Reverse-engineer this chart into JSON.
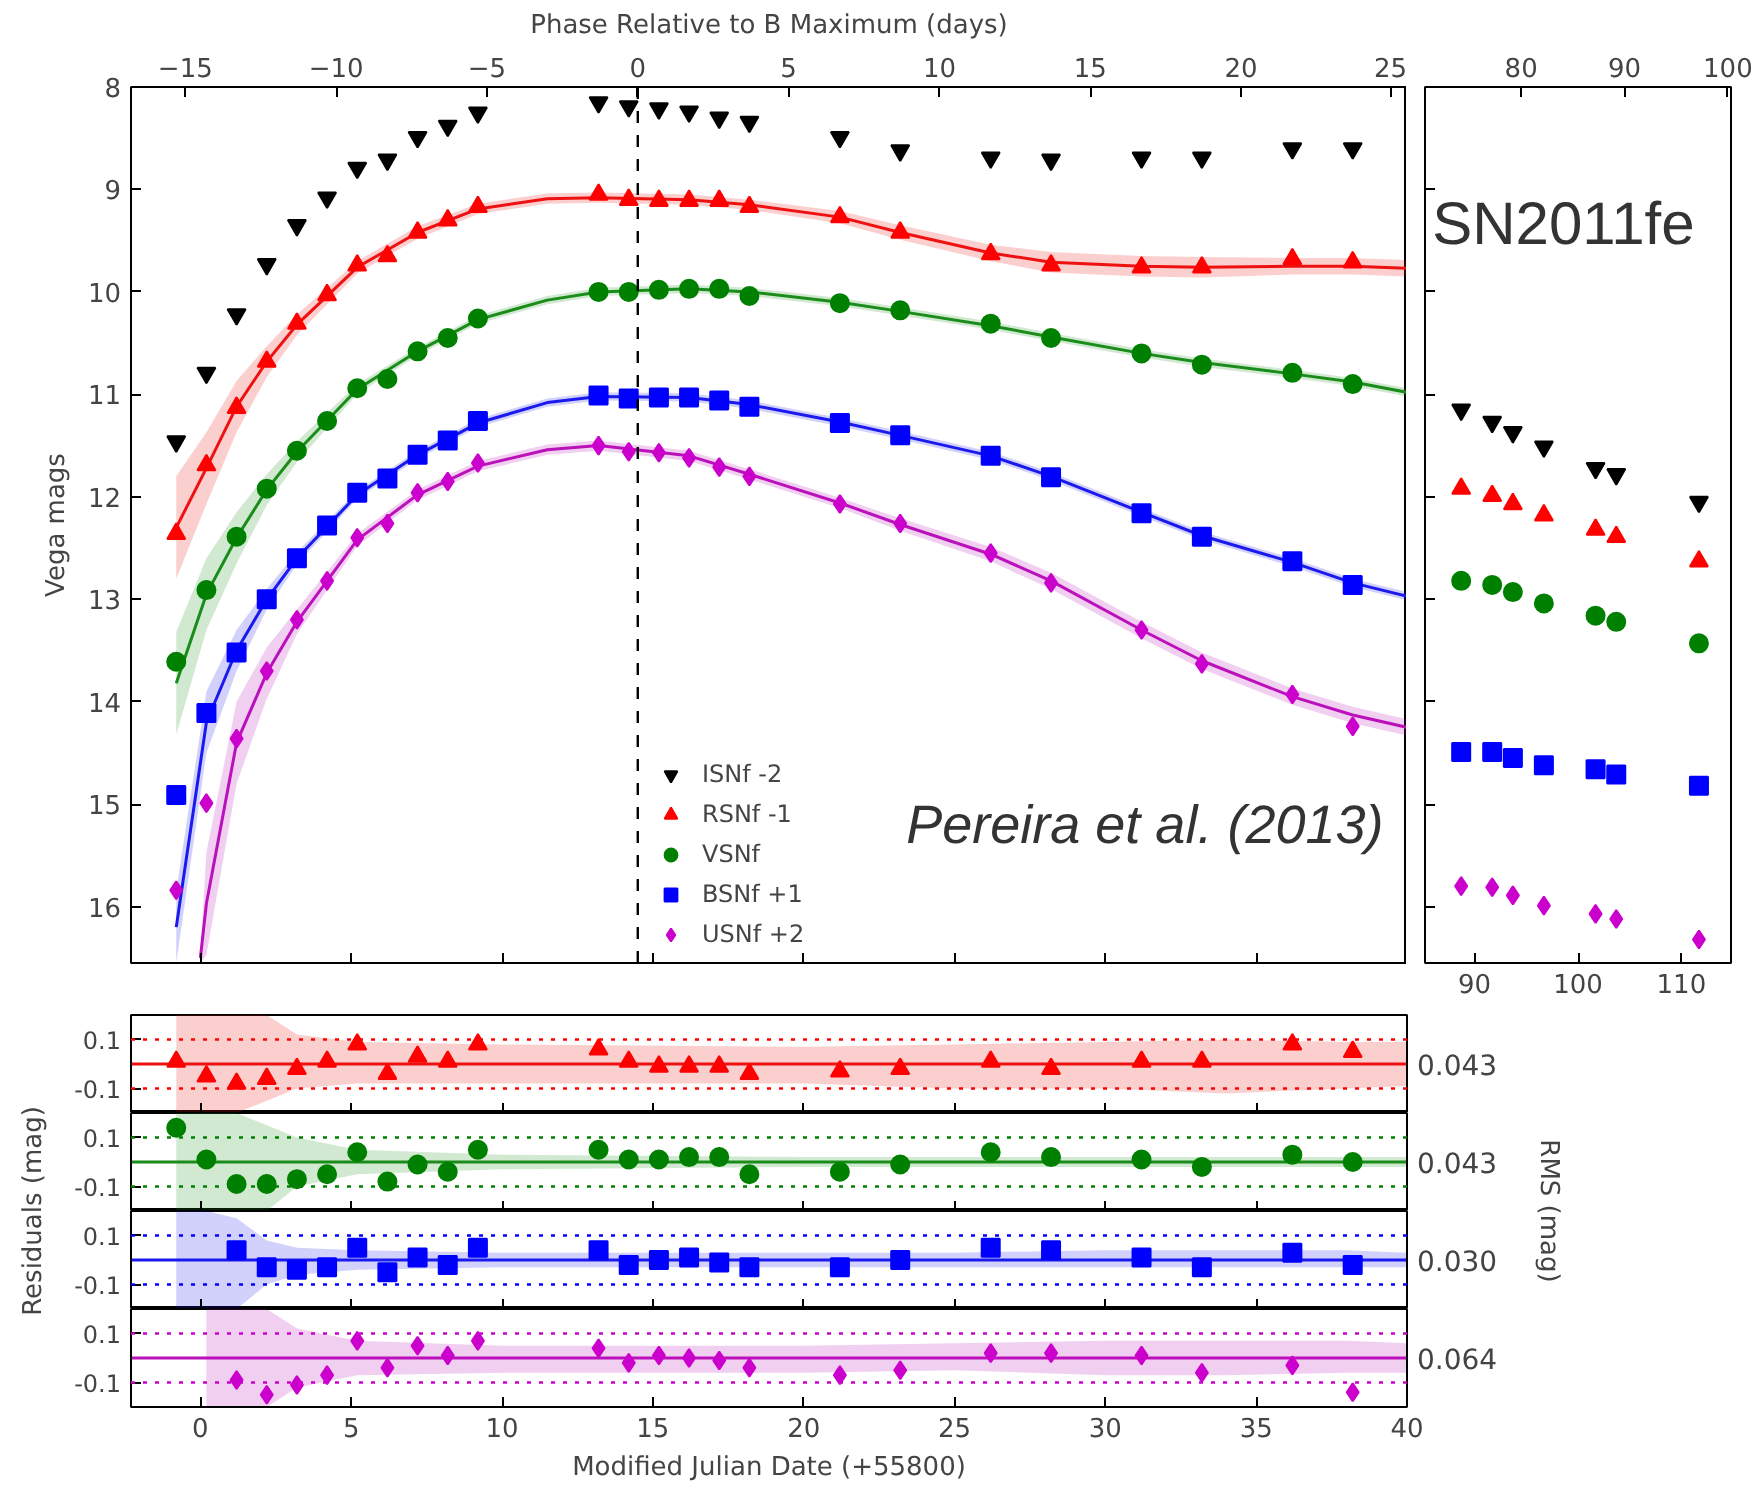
{
  "chart_data": [
    {
      "type": "scatter",
      "ylabel": "Vega mags",
      "x2label": "Phase Relative to B Maximum (days)",
      "x": [
        -0.8,
        0.2,
        1.2,
        2.2,
        3.2,
        4.2,
        5.2,
        6.2,
        7.2,
        8.2,
        9.2,
        13.2,
        14.2,
        15.2,
        16.2,
        17.2,
        18.2,
        21.2,
        23.2,
        26.2,
        28.2,
        31.2,
        33.2,
        36.2,
        38.2
      ],
      "xlim": [
        -2.3,
        40
      ],
      "xticks": [
        0,
        5,
        10,
        15,
        20,
        25,
        30,
        35,
        40
      ],
      "x2lim": [
        -16.8,
        25.5
      ],
      "x2ticks": [
        {
          "value": -15,
          "label": "−15"
        },
        {
          "value": -10,
          "label": "−10"
        },
        {
          "value": -5,
          "label": "−5"
        },
        0,
        5,
        10,
        15,
        20,
        25
      ],
      "ylim": [
        16.55,
        8
      ],
      "yticks": [
        8,
        9,
        10,
        11,
        12,
        13,
        14,
        15,
        16
      ],
      "tick_labels": "y",
      "legend": "bottom",
      "grid": false,
      "series": [
        {
          "type": "line",
          "color": "#ee1111",
          "x": [
            -0.8,
            0.2,
            1.2,
            2.2,
            3.2,
            5.2,
            7.2,
            9.2,
            11.5,
            13.2,
            16.2,
            18.2,
            21.2,
            23.2,
            26.2,
            28.2,
            31.2,
            33.2,
            36.2,
            38.2,
            40
          ],
          "values": [
            12.3,
            11.72,
            11.12,
            10.68,
            10.32,
            9.76,
            9.42,
            9.19,
            9.09,
            9.08,
            9.1,
            9.15,
            9.27,
            9.42,
            9.62,
            9.71,
            9.75,
            9.76,
            9.75,
            9.75,
            9.77
          ],
          "lower": [
            11.8,
            11.37,
            10.87,
            10.53,
            10.22,
            9.7,
            9.36,
            9.14,
            9.04,
            9.03,
            9.05,
            9.1,
            9.21,
            9.35,
            9.54,
            9.61,
            9.65,
            9.66,
            9.67,
            9.67,
            9.69
          ],
          "upper": [
            12.8,
            12.07,
            11.37,
            10.83,
            10.42,
            9.82,
            9.48,
            9.24,
            9.14,
            9.13,
            9.15,
            9.2,
            9.33,
            9.49,
            9.7,
            9.81,
            9.85,
            9.86,
            9.83,
            9.83,
            9.85
          ]
        },
        {
          "type": "line",
          "color": "#1a8c1a",
          "x": [
            -0.8,
            0.2,
            1.2,
            2.2,
            3.2,
            5.2,
            7.2,
            9.2,
            11.5,
            13.2,
            16.2,
            18.2,
            21.2,
            23.2,
            26.2,
            28.2,
            31.2,
            33.2,
            36.2,
            38.2,
            40
          ],
          "values": [
            13.82,
            12.95,
            12.4,
            11.93,
            11.56,
            10.95,
            10.58,
            10.27,
            10.08,
            10.0,
            9.97,
            10.0,
            10.1,
            10.19,
            10.33,
            10.44,
            10.6,
            10.69,
            10.8,
            10.88,
            10.98
          ],
          "lower": [
            13.32,
            12.6,
            12.15,
            11.78,
            11.46,
            10.9,
            10.54,
            10.23,
            10.04,
            9.96,
            9.93,
            9.96,
            10.06,
            10.15,
            10.29,
            10.4,
            10.56,
            10.65,
            10.76,
            10.84,
            10.94
          ],
          "upper": [
            14.32,
            13.3,
            12.65,
            12.08,
            11.66,
            11.0,
            10.62,
            10.31,
            10.12,
            10.04,
            10.01,
            10.04,
            10.14,
            10.23,
            10.37,
            10.48,
            10.64,
            10.73,
            10.84,
            10.92,
            11.02
          ]
        },
        {
          "type": "line",
          "color": "#1a1aee",
          "x": [
            -0.8,
            0.2,
            1.2,
            2.2,
            3.2,
            5.2,
            7.2,
            9.2,
            11.5,
            13.2,
            16.2,
            18.2,
            21.2,
            23.2,
            26.2,
            28.2,
            31.2,
            33.2,
            36.2,
            38.2,
            40
          ],
          "values": [
            16.2,
            14.2,
            13.5,
            13.0,
            12.6,
            11.98,
            11.59,
            11.28,
            11.08,
            11.02,
            11.03,
            11.1,
            11.27,
            11.4,
            11.6,
            11.8,
            12.15,
            12.38,
            12.64,
            12.84,
            12.97
          ],
          "lower": [
            15.85,
            13.9,
            13.3,
            12.9,
            12.54,
            11.94,
            11.55,
            11.24,
            11.04,
            10.98,
            10.99,
            11.06,
            11.23,
            11.36,
            11.56,
            11.76,
            12.11,
            12.34,
            12.6,
            12.8,
            12.93
          ],
          "upper": [
            16.55,
            14.5,
            13.7,
            13.1,
            12.66,
            12.02,
            11.63,
            11.32,
            11.12,
            11.06,
            11.07,
            11.14,
            11.31,
            11.44,
            11.64,
            11.84,
            12.19,
            12.42,
            12.68,
            12.88,
            13.01
          ]
        },
        {
          "type": "line",
          "color": "#bb11bb",
          "x": [
            0.0,
            0.2,
            1.2,
            2.2,
            3.2,
            5.2,
            7.2,
            9.2,
            11.5,
            13.2,
            16.2,
            18.2,
            21.2,
            23.2,
            26.2,
            28.2,
            31.2,
            33.2,
            36.2,
            38.2,
            40
          ],
          "values": [
            16.5,
            15.97,
            14.4,
            13.72,
            13.22,
            12.42,
            11.98,
            11.7,
            11.54,
            11.5,
            11.6,
            11.78,
            12.06,
            12.27,
            12.56,
            12.82,
            13.3,
            13.6,
            13.95,
            14.13,
            14.25
          ],
          "lower": [
            16.45,
            15.47,
            14.0,
            13.47,
            13.1,
            12.36,
            11.93,
            11.65,
            11.49,
            11.45,
            11.55,
            11.73,
            12.01,
            12.21,
            12.49,
            12.74,
            13.22,
            13.52,
            13.87,
            14.05,
            14.17
          ],
          "upper": [
            16.55,
            16.47,
            14.8,
            13.97,
            13.34,
            12.48,
            12.03,
            11.75,
            11.59,
            11.55,
            11.65,
            11.83,
            12.11,
            12.33,
            12.63,
            12.9,
            13.38,
            13.68,
            14.03,
            14.21,
            14.33
          ]
        },
        {
          "name": "ISNf -2",
          "color": "#000000",
          "marker": "triangle",
          "values": [
            11.46,
            10.79,
            10.22,
            9.73,
            9.35,
            9.08,
            8.79,
            8.71,
            8.49,
            8.38,
            8.25,
            8.15,
            8.19,
            8.21,
            8.24,
            8.3,
            8.34,
            8.49,
            8.62,
            8.69,
            8.71,
            8.69,
            8.69,
            8.6,
            8.6
          ]
        },
        {
          "name": "RSNf -1",
          "color": "#ff0000",
          "marker": "triangle",
          "values": [
            12.36,
            11.69,
            11.13,
            10.68,
            10.31,
            10.03,
            9.74,
            9.65,
            9.42,
            9.3,
            9.17,
            9.05,
            9.1,
            9.11,
            9.11,
            9.11,
            9.17,
            9.27,
            9.42,
            9.63,
            9.74,
            9.76,
            9.76,
            9.68,
            9.71
          ]
        },
        {
          "name": "VSNf",
          "color": "#008000",
          "marker": "circle",
          "values": [
            13.61,
            12.91,
            12.39,
            11.92,
            11.55,
            11.26,
            10.94,
            10.85,
            10.58,
            10.45,
            10.26,
            10.0,
            10.0,
            9.98,
            9.97,
            9.97,
            10.04,
            10.11,
            10.18,
            10.31,
            10.45,
            10.6,
            10.71,
            10.79,
            10.9
          ]
        },
        {
          "name": "BSNf +1",
          "color": "#0000ff",
          "marker": "square",
          "values": [
            14.91,
            14.11,
            13.52,
            13.0,
            12.6,
            12.28,
            11.96,
            11.82,
            11.59,
            11.45,
            11.26,
            11.01,
            11.04,
            11.03,
            11.03,
            11.06,
            11.12,
            11.28,
            11.4,
            11.6,
            11.81,
            12.16,
            12.39,
            12.63,
            12.86
          ]
        },
        {
          "name": "USNf +2",
          "color": "#cc00cc",
          "marker": "diamond",
          "values": [
            15.84,
            14.99,
            14.36,
            13.7,
            13.2,
            12.82,
            12.4,
            12.26,
            11.96,
            11.85,
            11.67,
            11.5,
            11.56,
            11.57,
            11.62,
            11.71,
            11.8,
            12.07,
            12.26,
            12.55,
            12.84,
            13.3,
            13.63,
            13.93,
            14.24
          ]
        }
      ],
      "ref_lines": [
        {
          "axis": "x",
          "value": 14.5,
          "color": "#000000",
          "line_style": "dashed"
        }
      ],
      "annotations": [
        "Pereira et al. (2013)"
      ]
    },
    {
      "type": "scatter",
      "x": [
        88.7,
        91.7,
        93.7,
        96.7,
        101.7,
        103.7,
        111.7
      ],
      "xlim": [
        85.2,
        114.8
      ],
      "xticks": [
        90,
        100,
        110
      ],
      "x2lim": [
        70.7,
        100.3
      ],
      "x2ticks": [
        80,
        90,
        100
      ],
      "ylim": [
        16.55,
        8
      ],
      "yticks": [
        8,
        9,
        10,
        11,
        12,
        13,
        14,
        15,
        16
      ],
      "tick_labels": "x",
      "grid": false,
      "series": [
        {
          "color": "#000000",
          "marker": "triangle",
          "values": [
            11.15,
            11.27,
            11.37,
            11.51,
            11.72,
            11.78,
            12.05
          ]
        },
        {
          "color": "#ff0000",
          "marker": "triangle",
          "values": [
            11.92,
            11.99,
            12.07,
            12.18,
            12.32,
            12.39,
            12.63
          ]
        },
        {
          "color": "#008000",
          "marker": "circle",
          "values": [
            12.82,
            12.86,
            12.93,
            13.04,
            13.16,
            13.22,
            13.43
          ]
        },
        {
          "color": "#0000ff",
          "marker": "square",
          "values": [
            14.49,
            14.49,
            14.55,
            14.62,
            14.66,
            14.71,
            14.82
          ]
        },
        {
          "color": "#cc00cc",
          "marker": "diamond",
          "values": [
            15.8,
            15.81,
            15.89,
            15.99,
            16.07,
            16.12,
            16.32
          ]
        }
      ],
      "annotations": [
        "SN2011fe"
      ]
    },
    {
      "type": "scatter",
      "ylabel": "Residuals (mag)",
      "y2label": "RMS (mag)",
      "x": [
        -0.8,
        0.2,
        1.2,
        2.2,
        3.2,
        4.2,
        5.2,
        6.2,
        7.2,
        8.2,
        9.2,
        13.2,
        14.2,
        15.2,
        16.2,
        17.2,
        18.2,
        21.2,
        23.2,
        26.2,
        28.2,
        31.2,
        33.2,
        36.2,
        38.2
      ],
      "xlim": [
        -2.3,
        40
      ],
      "xticks": [
        0,
        5,
        10,
        15,
        20,
        25,
        30,
        35,
        40
      ],
      "ylim": [
        -0.2,
        0.2
      ],
      "yticks": [
        -0.1,
        0.1
      ],
      "tick_labels": "y",
      "grid": false,
      "series": [
        {
          "type": "line",
          "color": "#ee1111",
          "x": [
            -2.3,
            -0.8,
            0.2,
            1.2,
            2.2,
            3.2,
            5.2,
            10,
            20,
            25,
            30,
            34,
            38,
            40
          ],
          "values": [
            0,
            0,
            0,
            0,
            0,
            0,
            0,
            0,
            0,
            0,
            0,
            0,
            0,
            0
          ],
          "lower": [
            null,
            -0.2,
            -0.2,
            -0.2,
            -0.15,
            -0.1,
            -0.08,
            -0.08,
            -0.08,
            -0.1,
            -0.1,
            -0.12,
            -0.1,
            -0.09
          ],
          "upper": [
            null,
            0.2,
            0.2,
            0.2,
            0.2,
            0.12,
            0.09,
            0.08,
            0.07,
            0.08,
            0.09,
            0.1,
            0.09,
            0.09
          ]
        },
        {
          "color": "#ff0000",
          "marker": "triangle",
          "values": [
            0.01,
            -0.05,
            -0.08,
            -0.06,
            -0.02,
            0.01,
            0.08,
            -0.04,
            0.03,
            0.01,
            0.08,
            0.06,
            0.01,
            -0.01,
            -0.01,
            -0.01,
            -0.04,
            -0.03,
            -0.02,
            0.01,
            -0.02,
            0.01,
            0.01,
            0.08,
            0.05
          ]
        }
      ],
      "ref_lines": [
        {
          "axis": "y",
          "value": 0.1,
          "color": "#ff0000",
          "line_style": "dotted"
        },
        {
          "axis": "y",
          "value": -0.1,
          "color": "#ff0000",
          "line_style": "dotted"
        }
      ],
      "annotations": [
        "0.043"
      ]
    },
    {
      "type": "scatter",
      "x": [
        -0.8,
        0.2,
        1.2,
        2.2,
        3.2,
        4.2,
        5.2,
        6.2,
        7.2,
        8.2,
        9.2,
        13.2,
        14.2,
        15.2,
        16.2,
        17.2,
        18.2,
        21.2,
        23.2,
        26.2,
        28.2,
        31.2,
        33.2,
        36.2,
        38.2
      ],
      "xlim": [
        -2.3,
        40
      ],
      "xticks": [
        0,
        5,
        10,
        15,
        20,
        25,
        30,
        35,
        40
      ],
      "ylim": [
        -0.2,
        0.2
      ],
      "yticks": [
        -0.1,
        0.1
      ],
      "tick_labels": "y",
      "grid": false,
      "series": [
        {
          "type": "line",
          "color": "#1a8c1a",
          "x": [
            -2.3,
            -0.8,
            0.2,
            1.2,
            2.2,
            3.2,
            5.2,
            10,
            20,
            25,
            30,
            34,
            38,
            40
          ],
          "values": [
            0,
            0,
            0,
            0,
            0,
            0,
            0,
            0,
            0,
            0,
            0,
            0,
            0,
            0
          ],
          "lower": [
            null,
            -0.2,
            -0.2,
            -0.2,
            -0.2,
            -0.1,
            -0.05,
            -0.03,
            -0.02,
            -0.02,
            -0.02,
            -0.02,
            -0.02,
            -0.02
          ],
          "upper": [
            null,
            0.2,
            0.2,
            0.2,
            0.15,
            0.1,
            0.05,
            0.03,
            0.02,
            0.02,
            0.02,
            0.02,
            0.02,
            0.02
          ]
        },
        {
          "color": "#008000",
          "marker": "circle",
          "values": [
            0.14,
            0.01,
            -0.09,
            -0.09,
            -0.07,
            -0.05,
            0.04,
            -0.08,
            -0.01,
            -0.04,
            0.05,
            0.05,
            0.01,
            0.01,
            0.02,
            0.02,
            -0.05,
            -0.04,
            -0.01,
            0.04,
            0.02,
            0.01,
            -0.02,
            0.03,
            0
          ]
        }
      ],
      "ref_lines": [
        {
          "axis": "y",
          "value": 0.1,
          "color": "#008000",
          "line_style": "dotted"
        },
        {
          "axis": "y",
          "value": -0.1,
          "color": "#008000",
          "line_style": "dotted"
        }
      ],
      "annotations": [
        "0.043"
      ]
    },
    {
      "type": "scatter",
      "x": [
        1.2,
        2.2,
        3.2,
        4.2,
        5.2,
        6.2,
        7.2,
        8.2,
        9.2,
        13.2,
        14.2,
        15.2,
        16.2,
        17.2,
        18.2,
        21.2,
        23.2,
        26.2,
        28.2,
        31.2,
        33.2,
        36.2,
        38.2
      ],
      "xlim": [
        -2.3,
        40
      ],
      "xticks": [
        0,
        5,
        10,
        15,
        20,
        25,
        30,
        35,
        40
      ],
      "ylim": [
        -0.2,
        0.2
      ],
      "yticks": [
        -0.1,
        0.1
      ],
      "tick_labels": "y",
      "grid": false,
      "series": [
        {
          "type": "line",
          "color": "#1a1aee",
          "x": [
            -2.3,
            -0.8,
            0.2,
            1.2,
            2.2,
            3.2,
            5.2,
            10,
            20,
            25,
            30,
            34,
            38,
            40
          ],
          "values": [
            0,
            0,
            0,
            0,
            0,
            0,
            0,
            0,
            0,
            0,
            0,
            0,
            0,
            0
          ],
          "lower": [
            null,
            -0.2,
            -0.2,
            -0.2,
            -0.1,
            -0.06,
            -0.04,
            -0.03,
            -0.03,
            -0.03,
            -0.03,
            -0.03,
            -0.03,
            -0.03
          ],
          "upper": [
            null,
            0.2,
            0.2,
            0.17,
            0.08,
            0.05,
            0.04,
            0.03,
            0.03,
            0.03,
            0.04,
            0.04,
            0.04,
            0.03
          ]
        },
        {
          "color": "#0000ff",
          "marker": "square",
          "values": [
            0.04,
            -0.03,
            -0.04,
            -0.03,
            0.05,
            -0.05,
            0.01,
            -0.02,
            0.05,
            0.04,
            -0.02,
            0,
            0.01,
            -0.01,
            -0.03,
            -0.03,
            0,
            0.05,
            0.04,
            0.01,
            -0.03,
            0.03,
            -0.02
          ]
        }
      ],
      "ref_lines": [
        {
          "axis": "y",
          "value": 0.1,
          "color": "#0000ff",
          "line_style": "dotted"
        },
        {
          "axis": "y",
          "value": -0.1,
          "color": "#0000ff",
          "line_style": "dotted"
        }
      ],
      "annotations": [
        "0.030"
      ]
    },
    {
      "type": "scatter",
      "xlabel": "Modified Julian Date (+55800)",
      "x": [
        1.2,
        2.2,
        3.2,
        4.2,
        5.2,
        6.2,
        7.2,
        8.2,
        9.2,
        13.2,
        14.2,
        15.2,
        16.2,
        17.2,
        18.2,
        21.2,
        23.2,
        26.2,
        28.2,
        31.2,
        33.2,
        36.2,
        38.2
      ],
      "xlim": [
        -2.3,
        40
      ],
      "xticks": [
        0,
        5,
        10,
        15,
        20,
        25,
        30,
        35,
        40
      ],
      "ylim": [
        -0.2,
        0.2
      ],
      "yticks": [
        -0.1,
        0.1
      ],
      "grid": false,
      "series": [
        {
          "type": "line",
          "color": "#bb11bb",
          "x": [
            -2.3,
            -0.8,
            0.2,
            1.2,
            2.2,
            3.2,
            5.2,
            10,
            20,
            25,
            30,
            34,
            38,
            40
          ],
          "values": [
            0,
            0,
            0,
            0,
            0,
            0,
            0,
            0,
            0,
            0,
            0,
            0,
            0,
            0
          ],
          "lower": [
            null,
            null,
            -0.2,
            -0.2,
            -0.2,
            -0.12,
            -0.07,
            -0.06,
            -0.06,
            -0.05,
            -0.07,
            -0.07,
            -0.06,
            -0.06
          ],
          "upper": [
            null,
            null,
            0.2,
            0.2,
            0.2,
            0.12,
            0.07,
            0.05,
            0.05,
            0.06,
            0.07,
            0.07,
            0.07,
            0.06
          ]
        },
        {
          "color": "#cc00cc",
          "marker": "diamond",
          "values": [
            -0.09,
            -0.15,
            -0.11,
            -0.07,
            0.07,
            -0.04,
            0.05,
            0.01,
            0.07,
            0.04,
            -0.02,
            0.01,
            0,
            -0.01,
            -0.04,
            -0.07,
            -0.05,
            0.02,
            0.02,
            0.01,
            -0.06,
            -0.03,
            -0.14
          ]
        }
      ],
      "ref_lines": [
        {
          "axis": "y",
          "value": 0.1,
          "color": "#cc00cc",
          "line_style": "dotted"
        },
        {
          "axis": "y",
          "value": -0.1,
          "color": "#cc00cc",
          "line_style": "dotted"
        }
      ],
      "annotations": [
        "0.064"
      ]
    }
  ]
}
